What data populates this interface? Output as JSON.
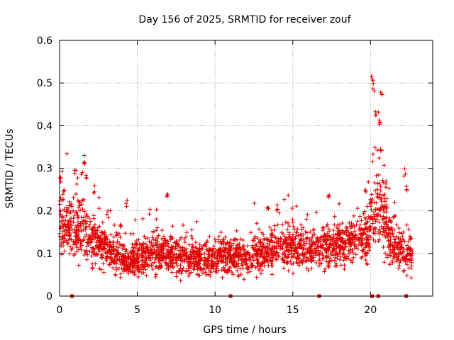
{
  "chart_data": {
    "type": "scatter",
    "title": "Day 156 of 2025, SRMTID for receiver zouf",
    "xlabel": "GPS time / hours",
    "ylabel": "SRMTID / TECUs",
    "xlim": [
      0,
      24
    ],
    "ylim": [
      0,
      0.6
    ],
    "xticks": [
      0,
      5,
      10,
      15,
      20
    ],
    "yticks": [
      0,
      0.1,
      0.2,
      0.3,
      0.4,
      0.5,
      0.6
    ],
    "xtick_labels": [
      "0",
      "5",
      "10",
      "15",
      "20"
    ],
    "ytick_labels": [
      "0",
      "0.1",
      "0.2",
      "0.3",
      "0.4",
      "0.5",
      "0.6"
    ],
    "grid": true,
    "marker": "plus",
    "series_color": "#e00000",
    "data_range_hours": [
      0,
      22.7
    ],
    "trend": [
      {
        "x": 0.0,
        "y": 0.17
      },
      {
        "x": 0.5,
        "y": 0.16
      },
      {
        "x": 1.0,
        "y": 0.15
      },
      {
        "x": 1.5,
        "y": 0.16
      },
      {
        "x": 2.0,
        "y": 0.13
      },
      {
        "x": 2.5,
        "y": 0.12
      },
      {
        "x": 3.0,
        "y": 0.11
      },
      {
        "x": 3.5,
        "y": 0.1
      },
      {
        "x": 4.0,
        "y": 0.09
      },
      {
        "x": 4.5,
        "y": 0.085
      },
      {
        "x": 5.0,
        "y": 0.09
      },
      {
        "x": 6.0,
        "y": 0.1
      },
      {
        "x": 7.0,
        "y": 0.1
      },
      {
        "x": 8.0,
        "y": 0.09
      },
      {
        "x": 9.0,
        "y": 0.09
      },
      {
        "x": 10.0,
        "y": 0.09
      },
      {
        "x": 10.5,
        "y": 0.1
      },
      {
        "x": 11.0,
        "y": 0.09
      },
      {
        "x": 12.0,
        "y": 0.09
      },
      {
        "x": 13.0,
        "y": 0.1
      },
      {
        "x": 14.0,
        "y": 0.11
      },
      {
        "x": 15.0,
        "y": 0.12
      },
      {
        "x": 16.0,
        "y": 0.11
      },
      {
        "x": 17.0,
        "y": 0.11
      },
      {
        "x": 18.0,
        "y": 0.12
      },
      {
        "x": 19.0,
        "y": 0.13
      },
      {
        "x": 19.8,
        "y": 0.14
      },
      {
        "x": 20.2,
        "y": 0.2
      },
      {
        "x": 20.6,
        "y": 0.22
      },
      {
        "x": 21.0,
        "y": 0.16
      },
      {
        "x": 21.5,
        "y": 0.12
      },
      {
        "x": 22.0,
        "y": 0.1
      },
      {
        "x": 22.7,
        "y": 0.09
      }
    ],
    "peaks": [
      {
        "x": 0.1,
        "y": 0.28
      },
      {
        "x": 0.3,
        "y": 0.25
      },
      {
        "x": 1.0,
        "y": 0.3
      },
      {
        "x": 1.6,
        "y": 0.32
      },
      {
        "x": 1.7,
        "y": 0.29
      },
      {
        "x": 2.2,
        "y": 0.26
      },
      {
        "x": 3.1,
        "y": 0.2
      },
      {
        "x": 4.3,
        "y": 0.23
      },
      {
        "x": 6.9,
        "y": 0.24
      },
      {
        "x": 13.4,
        "y": 0.22
      },
      {
        "x": 14.0,
        "y": 0.22
      },
      {
        "x": 17.3,
        "y": 0.25
      },
      {
        "x": 19.7,
        "y": 0.25
      },
      {
        "x": 20.1,
        "y": 0.52
      },
      {
        "x": 20.2,
        "y": 0.5
      },
      {
        "x": 20.3,
        "y": 0.44
      },
      {
        "x": 20.6,
        "y": 0.42
      },
      {
        "x": 20.7,
        "y": 0.49
      },
      {
        "x": 20.7,
        "y": 0.35
      },
      {
        "x": 21.0,
        "y": 0.27
      },
      {
        "x": 22.2,
        "y": 0.3
      },
      {
        "x": 22.3,
        "y": 0.26
      }
    ],
    "gap_markers_hours": [
      0.8,
      11.0,
      16.7,
      20.1,
      20.5,
      22.3
    ],
    "points_per_hour": 110
  }
}
